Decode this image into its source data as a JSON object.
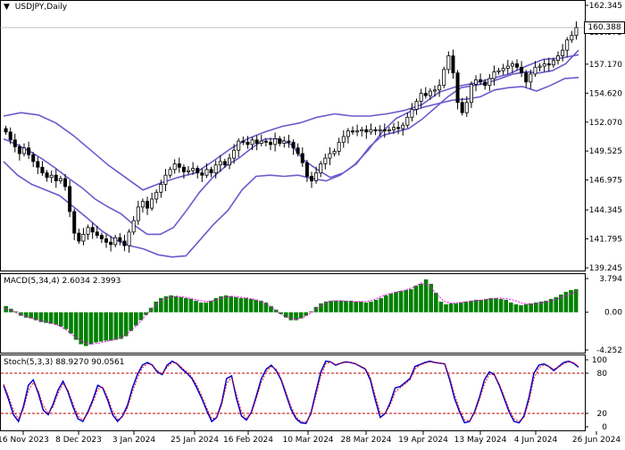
{
  "window": {
    "title_dropdown_glyph": "▼",
    "symbol": "USDJPY,Daily"
  },
  "price_tag": "160.388",
  "macd_label": {
    "name": "MACD(5,34,4)",
    "value1": "2.6034",
    "value2": "2.3993"
  },
  "stoch_label": {
    "name": "Stoch(5,3,3)",
    "value1": "88.9270",
    "value2": "90.0561"
  },
  "colors": {
    "candle": "#000000",
    "bollinger": "#6a5acd",
    "macd_hist": "#008000",
    "macd_signal": "#ff00ff",
    "stoch_main": "#0000cd",
    "stoch_signal": "#ff0000",
    "levels": "#c00000",
    "grid": "#000000"
  },
  "chart_data": [
    {
      "type": "candlestick",
      "title": "USDJPY,Daily",
      "x_tick_labels": [
        "16 Nov 2023",
        "8 Dec 2023",
        "3 Jan 2024",
        "25 Jan 2024",
        "16 Feb 2024",
        "10 Mar 2024",
        "28 Mar 2024",
        "19 Apr 2024",
        "13 May 2024",
        "4 Jun 2024",
        "26 Jun 2024"
      ],
      "y_tick_labels": [
        "162.345",
        "159.975",
        "157.170",
        "154.620",
        "152.070",
        "149.525",
        "146.975",
        "144.345",
        "141.795",
        "139.245"
      ],
      "ylim": [
        139.245,
        162.345
      ],
      "last_price": 160.388,
      "closes": [
        151.2,
        150.5,
        149.9,
        149.3,
        149.8,
        149.2,
        148.6,
        148.1,
        147.6,
        147.2,
        147.4,
        146.9,
        147.1,
        146.4,
        144.2,
        142.3,
        141.6,
        142.2,
        142.8,
        142.4,
        142.1,
        141.8,
        141.5,
        141.3,
        141.9,
        141.6,
        141.2,
        142.4,
        143.4,
        144.6,
        145.1,
        144.5,
        145.3,
        145.9,
        146.6,
        147.4,
        147.9,
        148.4,
        148.1,
        147.7,
        147.8,
        148.0,
        147.6,
        147.4,
        147.9,
        147.6,
        148.3,
        148.6,
        148.3,
        148.9,
        149.6,
        150.4,
        150.3,
        150.1,
        150.5,
        150.2,
        150.4,
        150.3,
        150.1,
        150.6,
        150.2,
        150.4,
        150.3,
        149.8,
        149.3,
        148.5,
        147.3,
        146.9,
        147.6,
        148.4,
        148.9,
        149.3,
        149.5,
        150.3,
        150.8,
        151.3,
        151.2,
        151.3,
        151.4,
        151.2,
        151.4,
        151.3,
        151.4,
        151.3,
        151.4,
        151.6,
        151.5,
        151.8,
        152.5,
        153.2,
        153.9,
        154.6,
        154.4,
        154.8,
        154.9,
        155.3,
        156.7,
        157.9,
        156.4,
        153.8,
        152.9,
        153.8,
        155.4,
        155.8,
        155.6,
        155.3,
        155.9,
        156.5,
        156.6,
        156.8,
        157.0,
        157.2,
        156.9,
        156.4,
        155.6,
        156.3,
        156.9,
        157.0,
        157.2,
        157.1,
        157.5,
        157.9,
        158.4,
        159.3,
        159.7,
        160.388
      ],
      "series": [
        {
          "name": "Bollinger upper",
          "values": [
            152.6,
            152.9,
            152.7,
            152.0,
            150.9,
            149.6,
            148.3,
            147.2,
            146.1,
            146.7,
            147.2,
            147.6,
            148.6,
            149.7,
            150.6,
            151.2,
            151.7,
            152.0,
            152.5,
            152.8,
            152.6,
            152.6,
            152.8,
            153.1,
            153.6,
            154.7,
            155.2,
            155.5,
            155.9,
            156.3,
            157.0,
            157.6,
            157.7,
            158.0
          ]
        },
        {
          "name": "Bollinger middle",
          "values": [
            150.6,
            150.1,
            149.5,
            148.8,
            148.0,
            147.1,
            146.3,
            145.3,
            144.6,
            144.0,
            143.0,
            142.2,
            142.2,
            142.8,
            144.3,
            145.9,
            147.2,
            148.2,
            148.9,
            149.8,
            150.6,
            150.6,
            150.1,
            148.7,
            147.9,
            147.2,
            147.6,
            148.4,
            149.9,
            150.9,
            151.2,
            151.5,
            152.3,
            153.3,
            154.3,
            155.1,
            155.3,
            155.5,
            155.9,
            156.3,
            156.5,
            156.4,
            156.6,
            157.2,
            158.4
          ]
        },
        {
          "name": "Bollinger lower",
          "values": [
            148.6,
            147.4,
            146.6,
            146.1,
            145.6,
            144.6,
            143.6,
            142.5,
            141.7,
            141.2,
            140.9,
            140.4,
            140.2,
            140.3,
            141.7,
            143.1,
            144.3,
            146.1,
            147.3,
            147.4,
            147.3,
            147.4,
            147.1,
            146.9,
            147.4,
            148.3,
            149.6,
            151.2,
            152.4,
            153.0,
            153.4,
            153.7,
            154.0,
            154.1,
            154.3,
            154.9,
            155.1,
            155.2,
            154.8,
            155.3,
            155.9,
            156.0
          ]
        }
      ]
    },
    {
      "type": "bar",
      "title": "MACD(5,34,4) 2.6034 2.3993",
      "y_tick_labels": [
        "3.794",
        "0.00",
        "-4.252"
      ],
      "ylim": [
        -4.252,
        3.794
      ],
      "series": [
        {
          "name": "MACD",
          "values": [
            0.7,
            0.4,
            0.1,
            -0.4,
            -0.6,
            -0.7,
            -0.9,
            -1.1,
            -1.2,
            -1.3,
            -1.4,
            -1.6,
            -1.9,
            -2.4,
            -3.1,
            -3.6,
            -3.8,
            -3.6,
            -3.4,
            -3.3,
            -3.2,
            -3.2,
            -3.1,
            -3.0,
            -2.7,
            -2.1,
            -1.5,
            -0.9,
            -0.3,
            0.5,
            1.2,
            1.6,
            1.8,
            1.9,
            1.8,
            1.7,
            1.6,
            1.5,
            1.3,
            1.1,
            1.1,
            1.3,
            1.6,
            1.8,
            1.9,
            1.8,
            1.7,
            1.6,
            1.6,
            1.5,
            1.4,
            1.3,
            1.1,
            0.7,
            0.3,
            -0.2,
            -0.6,
            -0.9,
            -0.9,
            -0.7,
            -0.4,
            0.1,
            0.6,
            1.0,
            1.2,
            1.3,
            1.3,
            1.3,
            1.3,
            1.3,
            1.2,
            1.2,
            1.1,
            1.2,
            1.4,
            1.6,
            1.9,
            2.1,
            2.3,
            2.4,
            2.5,
            2.6,
            3.0,
            3.2,
            3.7,
            3.2,
            2.2,
            1.2,
            0.9,
            1.0,
            1.0,
            1.1,
            1.2,
            1.3,
            1.4,
            1.4,
            1.5,
            1.6,
            1.6,
            1.5,
            1.4,
            1.1,
            0.9,
            0.8,
            0.9,
            1.0,
            1.1,
            1.2,
            1.3,
            1.5,
            1.7,
            2.0,
            2.3,
            2.5,
            2.6034
          ]
        },
        {
          "name": "Signal",
          "values": [
            0.5,
            0.2,
            -0.2,
            -0.5,
            -0.8,
            -1.0,
            -1.2,
            -1.5,
            -2.0,
            -2.7,
            -3.3,
            -3.6,
            -3.5,
            -3.3,
            -3.1,
            -2.8,
            -2.2,
            -1.4,
            -0.4,
            0.6,
            1.3,
            1.7,
            1.8,
            1.7,
            1.5,
            1.3,
            1.2,
            1.4,
            1.7,
            1.8,
            1.7,
            1.6,
            1.4,
            1.1,
            0.6,
            -0.1,
            -0.6,
            -0.8,
            -0.6,
            -0.1,
            0.6,
            1.1,
            1.3,
            1.3,
            1.2,
            1.2,
            1.2,
            1.4,
            1.8,
            2.1,
            2.3,
            2.5,
            2.8,
            3.3,
            3.1,
            2.0,
            1.2,
            1.0,
            1.1,
            1.2,
            1.3,
            1.4,
            1.5,
            1.6,
            1.5,
            1.3,
            1.0,
            0.9,
            1.0,
            1.2,
            1.4,
            1.7,
            2.1,
            2.3993
          ]
        }
      ]
    },
    {
      "type": "line",
      "title": "Stoch(5,3,3) 88.9270 90.0561",
      "y_tick_labels": [
        "100",
        "80",
        "20",
        "0"
      ],
      "ylim": [
        0,
        100
      ],
      "levels": [
        80,
        20
      ],
      "series": [
        {
          "name": "%K",
          "values": [
            62,
            41,
            18,
            8,
            30,
            62,
            70,
            50,
            25,
            18,
            34,
            55,
            68,
            52,
            30,
            12,
            8,
            22,
            40,
            62,
            58,
            40,
            18,
            8,
            16,
            32,
            58,
            78,
            92,
            96,
            92,
            82,
            78,
            92,
            98,
            94,
            86,
            80,
            72,
            58,
            42,
            24,
            8,
            14,
            36,
            72,
            76,
            42,
            16,
            10,
            22,
            46,
            72,
            86,
            92,
            84,
            70,
            48,
            26,
            12,
            6,
            5,
            20,
            52,
            82,
            98,
            97,
            92,
            95,
            97,
            96,
            94,
            90,
            86,
            70,
            40,
            14,
            20,
            36,
            58,
            60,
            66,
            72,
            90,
            93,
            96,
            98,
            96,
            95,
            94,
            70,
            42,
            22,
            6,
            8,
            22,
            44,
            70,
            82,
            78,
            62,
            42,
            22,
            8,
            6,
            16,
            44,
            80,
            92,
            94,
            90,
            84,
            90,
            96,
            98,
            95,
            88.927
          ]
        },
        {
          "name": "%D",
          "values": [
            64,
            46,
            24,
            12,
            26,
            54,
            66,
            54,
            32,
            20,
            30,
            50,
            64,
            55,
            35,
            16,
            10,
            20,
            36,
            56,
            60,
            44,
            24,
            11,
            15,
            28,
            52,
            72,
            88,
            94,
            92,
            84,
            79,
            89,
            96,
            95,
            88,
            82,
            74,
            62,
            46,
            28,
            12,
            14,
            32,
            64,
            74,
            48,
            22,
            12,
            20,
            42,
            66,
            82,
            90,
            86,
            72,
            52,
            30,
            15,
            8,
            7,
            18,
            46,
            76,
            94,
            97,
            93,
            95,
            96,
            96,
            94,
            91,
            87,
            74,
            46,
            20,
            20,
            32,
            52,
            58,
            64,
            70,
            86,
            92,
            95,
            97,
            96,
            95,
            94,
            74,
            48,
            26,
            10,
            9,
            20,
            40,
            64,
            78,
            78,
            64,
            46,
            26,
            12,
            8,
            14,
            38,
            72,
            88,
            92,
            90,
            86,
            89,
            94,
            97,
            96,
            90.0561
          ]
        }
      ]
    }
  ]
}
